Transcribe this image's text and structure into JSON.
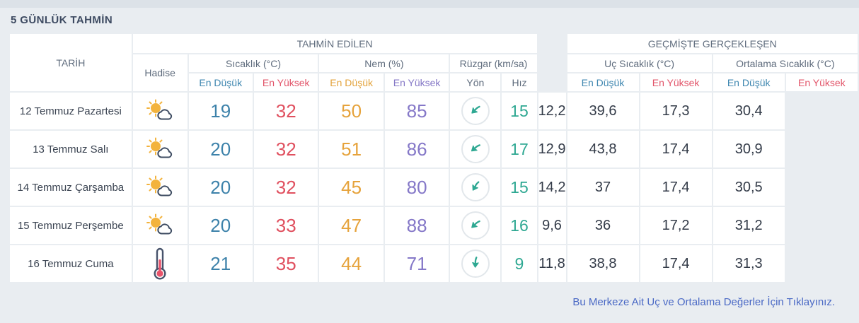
{
  "title": "5 GÜNLÜK TAHMİN",
  "colors": {
    "page_bg": "#e9edf1",
    "cell_bg": "#ffffff",
    "min_blue": "#3d82aa",
    "max_red": "#e0505f",
    "humidity_min_orange": "#e6a33c",
    "humidity_max_purple": "#8578c8",
    "wind_teal": "#2ea892",
    "link_blue": "#4a69c5",
    "sun_yellow": "#f3b33d",
    "thermometer_red": "#e8536b"
  },
  "table": {
    "headers": {
      "tarih": "TARİH",
      "tahmin_edilen": "TAHMİN EDİLEN",
      "gecmiste_gerceklesen": "GEÇMİŞTE GERÇEKLEŞEN",
      "hadise": "Hadise",
      "sicaklik": "Sıcaklık (°C)",
      "nem": "Nem (%)",
      "ruzgar": "Rüzgar (km/sa)",
      "uc_sicaklik": "Uç Sıcaklık (°C)",
      "ortalama_sicaklik": "Ortalama Sıcaklık (°C)",
      "en_dusuk": "En Düşük",
      "en_yuksek": "En Yüksek",
      "yon": "Yön",
      "hiz": "Hız"
    },
    "rows": [
      {
        "date": "12 Temmuz Pazartesi",
        "icon": "sun-cloud",
        "temp_min": "19",
        "temp_max": "32",
        "hum_min": "50",
        "hum_max": "85",
        "wind_deg": 45,
        "wind_speed": "15",
        "uc_min": "12,2",
        "uc_max": "39,6",
        "ort_min": "17,3",
        "ort_max": "30,4"
      },
      {
        "date": "13 Temmuz Salı",
        "icon": "sun-cloud",
        "temp_min": "20",
        "temp_max": "32",
        "hum_min": "51",
        "hum_max": "86",
        "wind_deg": 50,
        "wind_speed": "17",
        "uc_min": "12,9",
        "uc_max": "43,8",
        "ort_min": "17,4",
        "ort_max": "30,9"
      },
      {
        "date": "14 Temmuz Çarşamba",
        "icon": "sun-cloud",
        "temp_min": "20",
        "temp_max": "32",
        "hum_min": "45",
        "hum_max": "80",
        "wind_deg": 30,
        "wind_speed": "15",
        "uc_min": "14,2",
        "uc_max": "37",
        "ort_min": "17,4",
        "ort_max": "30,5"
      },
      {
        "date": "15 Temmuz Perşembe",
        "icon": "sun-cloud",
        "temp_min": "20",
        "temp_max": "33",
        "hum_min": "47",
        "hum_max": "88",
        "wind_deg": 47,
        "wind_speed": "16",
        "uc_min": "9,6",
        "uc_max": "36",
        "ort_min": "17,2",
        "ort_max": "31,2"
      },
      {
        "date": "16 Temmuz Cuma",
        "icon": "thermometer",
        "temp_min": "21",
        "temp_max": "35",
        "hum_min": "44",
        "hum_max": "71",
        "wind_deg": 3,
        "wind_speed": "9",
        "uc_min": "11,8",
        "uc_max": "38,8",
        "ort_min": "17,4",
        "ort_max": "31,3"
      }
    ]
  },
  "footer": {
    "link_label": "Bu Merkeze Ait Uç ve Ortalama Değerler İçin Tıklayınız."
  }
}
